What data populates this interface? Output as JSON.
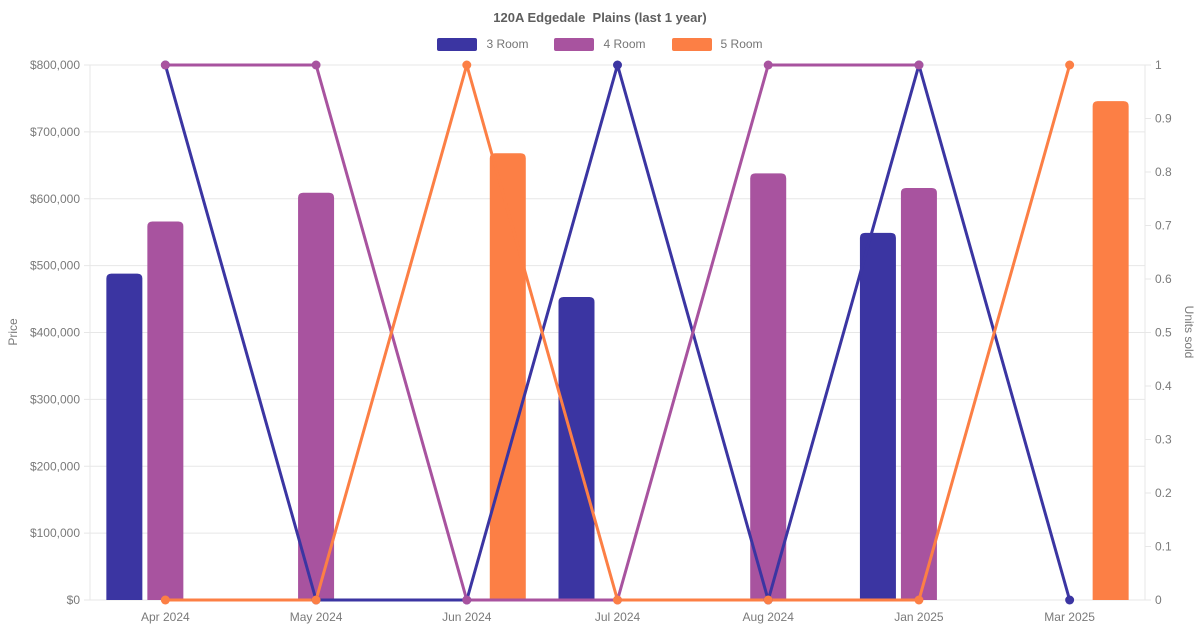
{
  "chart_data": {
    "type": "combo-bar-line",
    "title": "120A Edgedale  Plains (last 1 year)",
    "categories": [
      "Apr 2024",
      "May 2024",
      "Jun 2024",
      "Jul 2024",
      "Aug 2024",
      "Jan 2025",
      "Mar 2025"
    ],
    "legend_position": "top",
    "grid": "horizontal-only",
    "y_left": {
      "label": "Price",
      "min": 0,
      "max": 800000,
      "tick_step": 100000,
      "tick_labels": [
        "$0",
        "$100,000",
        "$200,000",
        "$300,000",
        "$400,000",
        "$500,000",
        "$600,000",
        "$700,000",
        "$800,000"
      ]
    },
    "y_right": {
      "label": "Units sold",
      "min": 0,
      "max": 1,
      "tick_step": 0.1,
      "tick_labels": [
        "0",
        "0.1",
        "0.2",
        "0.3",
        "0.4",
        "0.5",
        "0.6",
        "0.7",
        "0.8",
        "0.9",
        "1"
      ]
    },
    "bar_series": [
      {
        "name": "3 Room",
        "color": "#3B35A2",
        "axis": "left",
        "values": [
          488000,
          null,
          null,
          453000,
          null,
          549000,
          null
        ]
      },
      {
        "name": "4 Room",
        "color": "#A8539F",
        "axis": "left",
        "values": [
          566000,
          609000,
          null,
          null,
          638000,
          616000,
          null
        ]
      },
      {
        "name": "5 Room",
        "color": "#FC7F45",
        "axis": "left",
        "values": [
          null,
          null,
          668000,
          null,
          null,
          null,
          746000
        ]
      }
    ],
    "line_series": [
      {
        "name": "3 Room",
        "color": "#3B35A2",
        "axis": "right",
        "values": [
          1,
          0,
          0,
          1,
          0,
          1,
          0
        ]
      },
      {
        "name": "4 Room",
        "color": "#A8539F",
        "axis": "right",
        "values": [
          1,
          1,
          0,
          0,
          1,
          1,
          null
        ]
      },
      {
        "name": "5 Room",
        "color": "#FC7F45",
        "axis": "right",
        "values": [
          0,
          0,
          1,
          0,
          0,
          0,
          1
        ]
      }
    ],
    "style": {
      "grid_color": "#e7e7e7",
      "tick_text_color": "#7a7a7a",
      "title_color": "#5e5e5e"
    }
  }
}
